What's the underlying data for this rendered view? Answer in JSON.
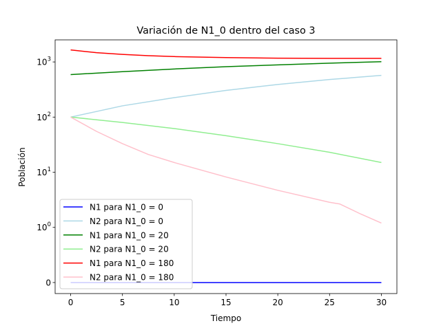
{
  "chart_data": {
    "type": "line",
    "title": "Variación de N1_0 dentro del caso 3",
    "xlabel": "Tiempo",
    "ylabel": "Población",
    "yscale": "symlog",
    "xlim": [
      -1.5,
      31.5
    ],
    "x_ticks": [
      0,
      5,
      10,
      15,
      20,
      25,
      30
    ],
    "y_ticks": [
      {
        "value": 0,
        "label": "0"
      },
      {
        "value": 1,
        "label": "10^0"
      },
      {
        "value": 10,
        "label": "10^1"
      },
      {
        "value": 100,
        "label": "10^2"
      },
      {
        "value": 1000,
        "label": "10^3"
      }
    ],
    "legend_position": "lower-left",
    "series": [
      {
        "name": "N1 para N1_0 = 0",
        "color": "#0000ff",
        "x": [
          0,
          5,
          10,
          15,
          20,
          25,
          30
        ],
        "y": [
          0,
          0,
          0,
          0,
          0,
          0,
          0
        ]
      },
      {
        "name": "N2 para N1_0 = 0",
        "color": "#add8e6",
        "x": [
          0,
          5,
          10,
          15,
          20,
          25,
          30
        ],
        "y": [
          100,
          160,
          225,
          305,
          390,
          480,
          570
        ]
      },
      {
        "name": "N1 para N1_0 = 20",
        "color": "#008000",
        "x": [
          0,
          5,
          10,
          15,
          20,
          25,
          30
        ],
        "y": [
          590,
          665,
          745,
          820,
          885,
          950,
          1010
        ]
      },
      {
        "name": "N2 para N1_0 = 20",
        "color": "#90ee90",
        "x": [
          0,
          5,
          10,
          15,
          20,
          25,
          30
        ],
        "y": [
          100,
          80,
          62,
          46,
          33,
          23,
          15
        ]
      },
      {
        "name": "N1 para N1_0 = 180",
        "color": "#ff0000",
        "x": [
          0,
          2.5,
          5,
          7.5,
          10,
          15,
          20,
          25,
          30
        ],
        "y": [
          1650,
          1470,
          1370,
          1300,
          1250,
          1200,
          1170,
          1160,
          1160
        ]
      },
      {
        "name": "N2 para N1_0 = 180",
        "color": "#ffc0cb",
        "x": [
          0,
          2.5,
          5,
          7.5,
          10,
          15,
          20,
          25,
          26,
          28,
          30
        ],
        "y": [
          100,
          55,
          33,
          21,
          15,
          8.2,
          4.7,
          2.85,
          2.65,
          1.75,
          1.2
        ]
      }
    ]
  }
}
